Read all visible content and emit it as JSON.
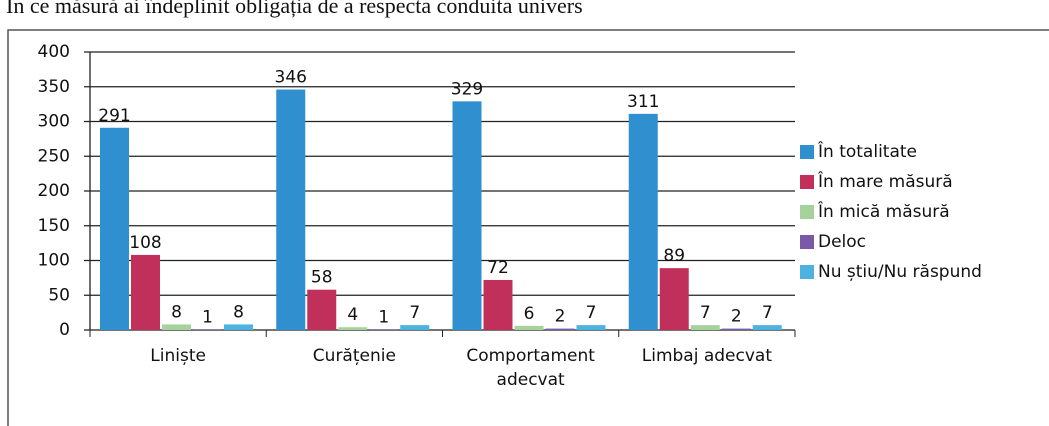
{
  "chart_data": {
    "type": "bar",
    "title": "În ce măsură ai îndeplinit obligația de a respecta conduita univers",
    "categories": [
      "Liniște",
      "Curățenie",
      "Comportament adecvat",
      "Limbaj adecvat"
    ],
    "series": [
      {
        "name": "În totalitate",
        "color": "#2f8fcf",
        "values": [
          291,
          346,
          329,
          311
        ]
      },
      {
        "name": "În mare măsură",
        "color": "#c1305a",
        "values": [
          108,
          58,
          72,
          89
        ]
      },
      {
        "name": "În mică măsură",
        "color": "#a6d39c",
        "values": [
          8,
          4,
          6,
          7
        ]
      },
      {
        "name": "Deloc",
        "color": "#7a5aa6",
        "values": [
          1,
          1,
          2,
          2
        ]
      },
      {
        "name": "Nu știu/Nu răspund",
        "color": "#4cb2e0",
        "values": [
          8,
          7,
          7,
          7
        ]
      }
    ],
    "ylim": [
      0,
      400
    ],
    "yticks": [
      0,
      50,
      100,
      150,
      200,
      250,
      300,
      350,
      400
    ],
    "grid": true,
    "legend": "right"
  }
}
